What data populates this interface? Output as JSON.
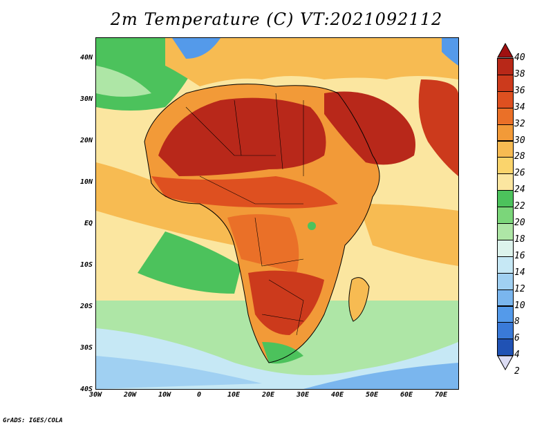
{
  "title": "2m Temperature (C) VT:2021092112",
  "credit": "GrADS: IGES/COLA",
  "lat_labels": [
    "40N",
    "30N",
    "20N",
    "10N",
    "EQ",
    "10S",
    "20S",
    "30S",
    "40S"
  ],
  "lon_labels": [
    "30W",
    "20W",
    "10W",
    "0",
    "10E",
    "20E",
    "30E",
    "40E",
    "50E",
    "60E",
    "70E"
  ],
  "colorbar": {
    "levels": [
      "40",
      "38",
      "36",
      "34",
      "32",
      "30",
      "28",
      "26",
      "24",
      "22",
      "20",
      "18",
      "16",
      "14",
      "12",
      "10",
      "8",
      "6",
      "4",
      "2"
    ],
    "colors": [
      "#a01010",
      "#b82818",
      "#cc3a1c",
      "#de5020",
      "#ea7028",
      "#f29a38",
      "#f7bb52",
      "#fad46c",
      "#fbe6a0",
      "#4cc25c",
      "#7bd67a",
      "#aee6a6",
      "#ddf3ec",
      "#c6e8f5",
      "#a0d0f2",
      "#7ab6ee",
      "#549aea",
      "#3a7ad8",
      "#2052b4",
      "#14287a"
    ]
  },
  "map": {
    "extent": {
      "lon": [
        -30,
        75
      ],
      "lat": [
        -40,
        45
      ]
    },
    "legend_colors": {
      "hot_core": "#b8281a",
      "hot": "#de5020",
      "warm": "#f29a38",
      "mild": "#fad46c",
      "ocean_warm": "#fbe6a0",
      "cool_green": "#4cc25c",
      "pale_green": "#aee6a6",
      "cold_blue": "#7ab6ee"
    }
  }
}
